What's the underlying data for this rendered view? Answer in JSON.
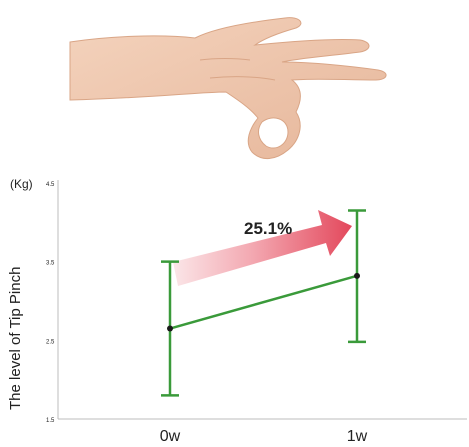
{
  "chart_data": {
    "type": "line",
    "unit_label": "(Kg)",
    "ylabel": "The level of Tip Pinch",
    "xlabel": "",
    "categories": [
      "0w",
      "1w"
    ],
    "yticks": [
      1.5,
      2.5,
      3.5,
      4.5
    ],
    "ytick_labels": [
      "1.5",
      "2.5",
      "3.5",
      "4.5"
    ],
    "ylim": [
      1.5,
      4.5
    ],
    "series": [
      {
        "values": [
          2.65,
          3.32
        ],
        "error_low": [
          1.8,
          2.48
        ],
        "error_high": [
          3.5,
          4.15
        ],
        "color": "#3a9a3a"
      }
    ],
    "annotation": {
      "text": "25.1%",
      "arrow_color": "#e05a6a"
    },
    "grid": false,
    "illustration": "hand-ok-gesture"
  }
}
